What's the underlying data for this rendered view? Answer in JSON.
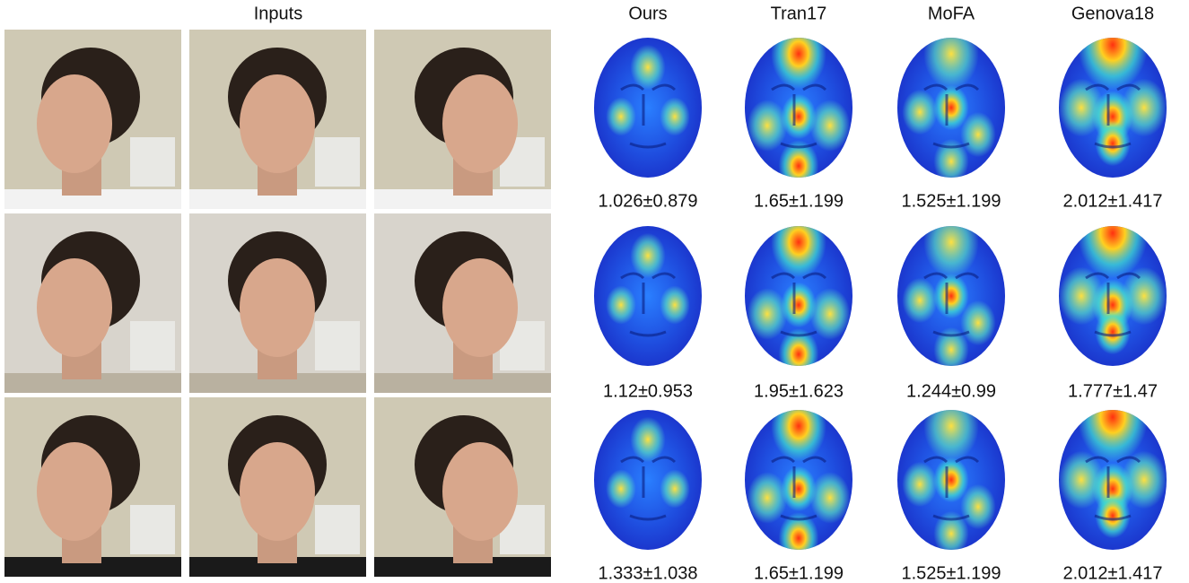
{
  "inputs": {
    "title": "Inputs"
  },
  "methods": [
    {
      "name": "Ours",
      "errors": [
        "1.026±0.879",
        "1.12±0.953",
        "1.333±1.038"
      ]
    },
    {
      "name": "Tran17",
      "errors": [
        "1.65±1.199",
        "1.95±1.623",
        "1.65±1.199"
      ]
    },
    {
      "name": "MoFA",
      "errors": [
        "1.525±1.199",
        "1.244±0.99",
        "1.525±1.199"
      ]
    },
    {
      "name": "Genova18",
      "errors": [
        "2.012±1.417",
        "1.777±1.47",
        "2.012±1.417"
      ]
    }
  ]
}
